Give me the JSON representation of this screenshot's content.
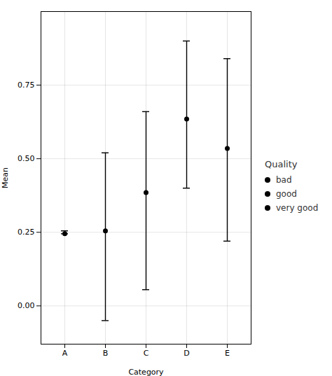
{
  "chart_data": {
    "type": "errorbar",
    "categories": [
      "A",
      "B",
      "C",
      "D",
      "E"
    ],
    "values": [
      0.245,
      0.255,
      0.385,
      0.635,
      0.535
    ],
    "lower": [
      0.245,
      -0.05,
      0.055,
      0.4,
      0.22
    ],
    "upper": [
      0.255,
      0.52,
      0.66,
      0.9,
      0.84
    ],
    "xlabel": "Category",
    "ylabel": "Mean",
    "ylim": [
      -0.13,
      1.0
    ],
    "yticks": [
      {
        "value": 0.0,
        "label": "0.00"
      },
      0.25,
      {
        "value": 0.5,
        "label": "0.50"
      },
      0.75
    ],
    "grid": true,
    "color": "#000000",
    "legend": "right",
    "legend_title": "Quality",
    "legend_entries": [
      "bad",
      "good",
      "very good"
    ]
  }
}
